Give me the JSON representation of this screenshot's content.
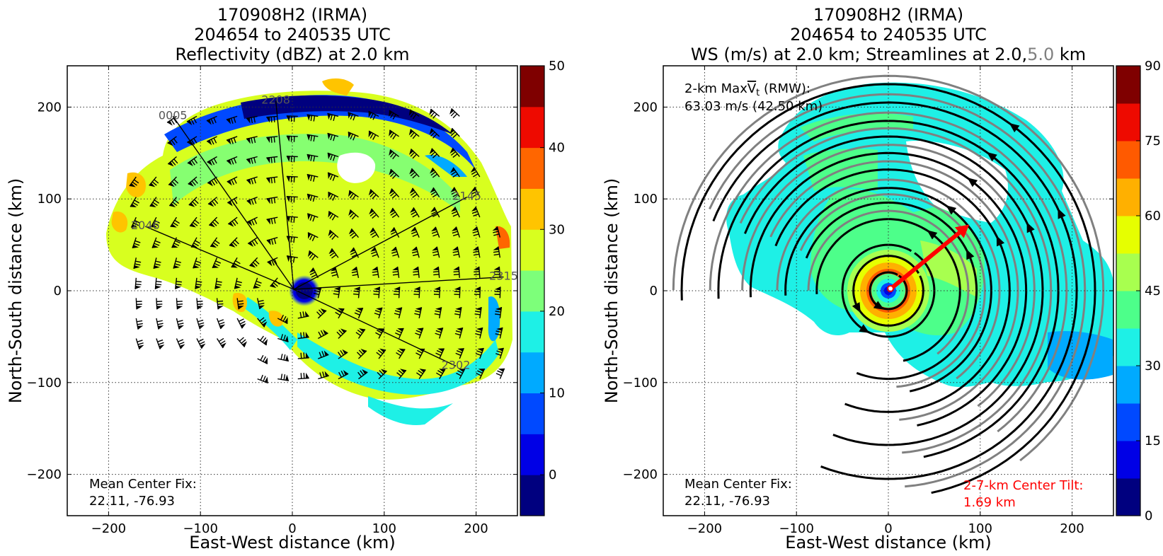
{
  "chart_data": [
    {
      "type": "heatmap",
      "title_lines": [
        "170908H2 (IRMA)",
        "204654 to 240535 UTC",
        "Reflectivity (dBZ) at 2.0 km"
      ],
      "xlabel": "East-West distance (km)",
      "ylabel": "North-South distance (km)",
      "xlim": [
        -245,
        245
      ],
      "ylim": [
        -245,
        245
      ],
      "xticks": [
        -200,
        -100,
        0,
        100,
        200
      ],
      "yticks": [
        -200,
        -100,
        0,
        100,
        200
      ],
      "xtick_labels": [
        "−200",
        "−100",
        "0",
        "100",
        "200"
      ],
      "ytick_labels": [
        "−200",
        "−100",
        "0",
        "100",
        "200"
      ],
      "grid": true,
      "colorbar": {
        "min": -5,
        "max": 50,
        "ticks": [
          0,
          10,
          20,
          30,
          40,
          50
        ],
        "tick_labels": [
          "0",
          "10",
          "20",
          "30",
          "40",
          "50"
        ],
        "colors": [
          "#00007f",
          "#0000e6",
          "#0049ff",
          "#00aaff",
          "#1ef0e6",
          "#7dff7a",
          "#d8ff1f",
          "#ffc400",
          "#ff6600",
          "#ee0a00",
          "#7f0000"
        ]
      },
      "flight_legs": [
        {
          "label": "0005",
          "end": [
            -130,
            190
          ]
        },
        {
          "label": "2208",
          "end": [
            -18,
            207
          ]
        },
        {
          "label": "2046",
          "end": [
            -160,
            70
          ]
        },
        {
          "label": "2145",
          "end": [
            190,
            102
          ]
        },
        {
          "label": "2315",
          "end": [
            230,
            15
          ]
        },
        {
          "label": "2302",
          "end": [
            178,
            -82
          ]
        }
      ],
      "annotations": [
        "Mean Center Fix:",
        "22.11, -76.93"
      ]
    },
    {
      "type": "heatmap",
      "title_lines": [
        "170908H2 (IRMA)",
        "204654 to 240535 UTC"
      ],
      "title_line3_parts": [
        {
          "text": "WS (m/s) at 2.0 km; Streamlines at 2.0,",
          "color": "#000000"
        },
        {
          "text": "5.0",
          "color": "#808080"
        },
        {
          "text": " km",
          "color": "#000000"
        }
      ],
      "xlabel": "East-West distance (km)",
      "ylabel": "North-South distance (km)",
      "xlim": [
        -245,
        245
      ],
      "ylim": [
        -245,
        245
      ],
      "xticks": [
        -200,
        -100,
        0,
        100,
        200
      ],
      "yticks": [
        -200,
        -100,
        0,
        100,
        200
      ],
      "xtick_labels": [
        "−200",
        "−100",
        "0",
        "100",
        "200"
      ],
      "ytick_labels": [
        "−200",
        "−100",
        "0",
        "100",
        "200"
      ],
      "grid": true,
      "colorbar": {
        "min": 0,
        "max": 90,
        "ticks": [
          0,
          15,
          30,
          45,
          60,
          75,
          90
        ],
        "tick_labels": [
          "0",
          "15",
          "30",
          "45",
          "60",
          "75",
          "90"
        ],
        "colors": [
          "#00007f",
          "#0000e6",
          "#0049ff",
          "#00aaff",
          "#1ef0e6",
          "#4dff8a",
          "#a8ff4f",
          "#e6ff00",
          "#ffb000",
          "#ff5a00",
          "#ee0a00",
          "#7f0000"
        ]
      },
      "max_wind_line1_prefix": "2-km Max",
      "max_wind_symbol": "V",
      "max_wind_subscript": "t",
      "max_wind_line1_suffix": " (RMW):",
      "max_wind_line2": "63.03 m/s (42.50 km)",
      "max_wind_ms": 63.03,
      "rmw_km": 42.5,
      "tilt_vector_end": [
        88,
        72
      ],
      "annotations": [
        "Mean Center Fix:",
        "22.11, -76.93"
      ],
      "tilt_label_lines": [
        "2-7-km Center Tilt:",
        "1.69 km"
      ],
      "tilt_color": "#ff0000"
    }
  ]
}
